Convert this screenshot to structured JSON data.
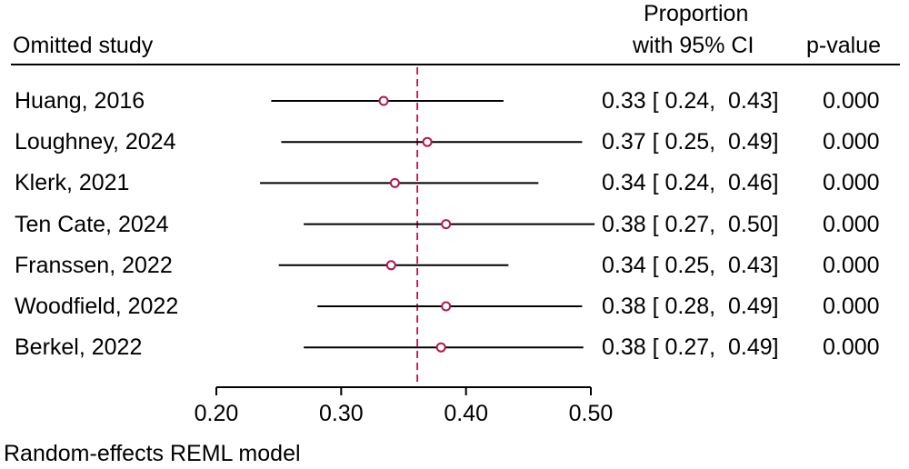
{
  "header": {
    "study_col": "Omitted study",
    "estimate_col_line1": "Proportion",
    "estimate_col_line2": "with 95% CI",
    "pvalue_col": "p-value"
  },
  "footer": "Random-effects REML model",
  "colors": {
    "marker": "#b5174c",
    "reference_line": "#b5174c",
    "lines": "#000000"
  },
  "chart_data": {
    "type": "forest",
    "xlim": [
      0.2,
      0.5
    ],
    "x_ticks": [
      0.2,
      0.3,
      0.4,
      0.5
    ],
    "x_tick_labels": [
      "0.20",
      "0.30",
      "0.40",
      "0.50"
    ],
    "overall_estimate": 0.361,
    "rows": [
      {
        "study": "Huang, 2016",
        "estimate": 0.334,
        "ci_low": 0.244,
        "ci_high": 0.43,
        "ci_text": "0.33 [ 0.24,  0.43]",
        "p_text": "0.000"
      },
      {
        "study": "Loughney, 2024",
        "estimate": 0.369,
        "ci_low": 0.252,
        "ci_high": 0.493,
        "ci_text": "0.37 [ 0.25,  0.49]",
        "p_text": "0.000"
      },
      {
        "study": "Klerk, 2021",
        "estimate": 0.343,
        "ci_low": 0.235,
        "ci_high": 0.458,
        "ci_text": "0.34 [ 0.24,  0.46]",
        "p_text": "0.000"
      },
      {
        "study": "Ten Cate, 2024",
        "estimate": 0.384,
        "ci_low": 0.27,
        "ci_high": 0.503,
        "ci_text": "0.38 [ 0.27,  0.50]",
        "p_text": "0.000"
      },
      {
        "study": "Franssen, 2022",
        "estimate": 0.34,
        "ci_low": 0.25,
        "ci_high": 0.434,
        "ci_text": "0.34 [ 0.25,  0.43]",
        "p_text": "0.000"
      },
      {
        "study": "Woodfield, 2022",
        "estimate": 0.384,
        "ci_low": 0.281,
        "ci_high": 0.493,
        "ci_text": "0.38 [ 0.28,  0.49]",
        "p_text": "0.000"
      },
      {
        "study": "Berkel, 2022",
        "estimate": 0.38,
        "ci_low": 0.27,
        "ci_high": 0.494,
        "ci_text": "0.38 [ 0.27,  0.49]",
        "p_text": "0.000"
      }
    ]
  }
}
